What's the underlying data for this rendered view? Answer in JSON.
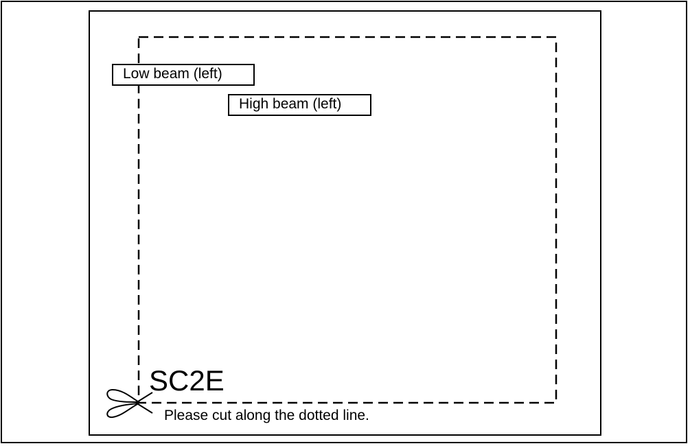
{
  "labels": {
    "low_beam": "Low beam (left)",
    "high_beam": "High beam (left)"
  },
  "code": "SC2E",
  "instruction": "Please cut along the dotted line.",
  "icons": {
    "scissors": "scissors-icon"
  },
  "colors": {
    "line": "#000000",
    "background": "#ffffff"
  }
}
